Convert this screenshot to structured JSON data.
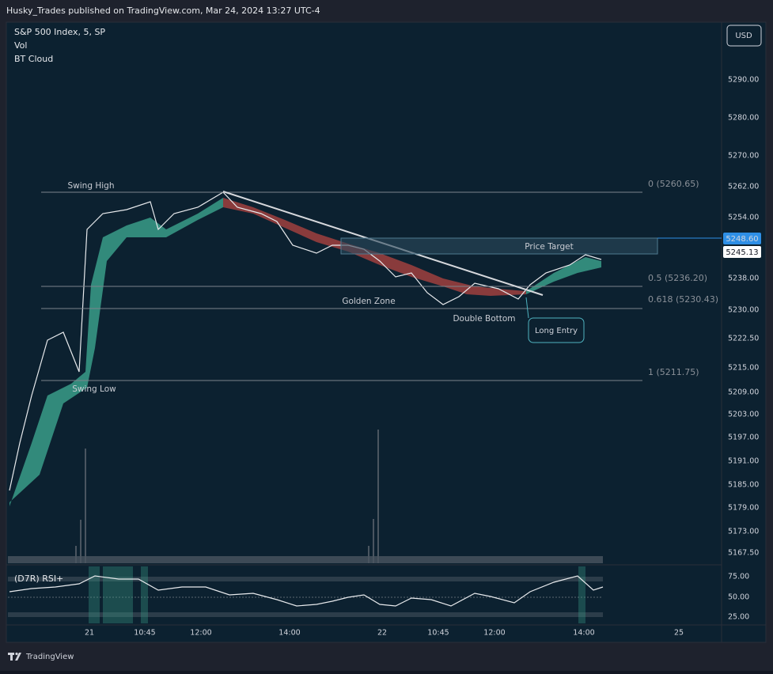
{
  "header": {
    "publisher": "Husky_Trades published on TradingView.com, Mar 24, 2024 13:27 UTC-4"
  },
  "legend": [
    "S&P 500 Index, 5, SP",
    "Vol",
    "BT Cloud"
  ],
  "currency_button": "USD",
  "price_axis": {
    "labels": [
      "5290.00",
      "5280.00",
      "5270.00",
      "5262.00",
      "5254.00",
      "5238.00",
      "5230.00",
      "5222.50",
      "5215.00",
      "5209.00",
      "5203.00",
      "5197.00",
      "5191.00",
      "5185.00",
      "5179.00",
      "5173.00",
      "5167.50"
    ],
    "last_price_label": "5248.60",
    "close_label": "5245.13"
  },
  "fib_levels": [
    "0 (5260.65)",
    "0.5 (5236.20)",
    "0.618 (5230.43)",
    "1 (5211.75)"
  ],
  "annotations": {
    "swing_high": "Swing High",
    "swing_low": "Swing Low",
    "golden_zone": "Golden Zone",
    "double_bottom": "Double Bottom",
    "price_target": "Price Target",
    "long_entry": "Long Entry"
  },
  "rsi": {
    "title": "(D7R) RSI+",
    "axis_labels": [
      "75.00",
      "50.00",
      "25.00"
    ]
  },
  "time_axis": [
    "21",
    "10:45",
    "12:00",
    "14:00",
    "22",
    "10:45",
    "12:00",
    "14:00",
    "25"
  ],
  "footer": {
    "brand": "TradingView"
  }
}
